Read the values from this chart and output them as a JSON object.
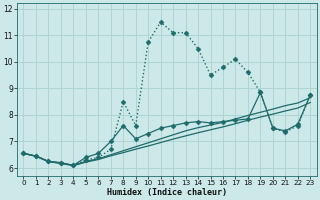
{
  "xlabel": "Humidex (Indice chaleur)",
  "bg_color": "#cce8e8",
  "grid_color": "#aed4d4",
  "line_color": "#1e6b6b",
  "xlim": [
    -0.5,
    23.5
  ],
  "ylim": [
    5.7,
    12.2
  ],
  "xticks": [
    0,
    1,
    2,
    3,
    4,
    5,
    6,
    7,
    8,
    9,
    10,
    11,
    12,
    13,
    14,
    15,
    16,
    17,
    18,
    19,
    20,
    21,
    22,
    23
  ],
  "yticks": [
    6,
    7,
    8,
    9,
    10,
    11,
    12
  ],
  "series": [
    {
      "x": [
        0,
        1,
        2,
        3,
        4,
        5,
        6,
        7,
        8,
        9,
        10,
        11,
        12,
        13,
        14,
        15,
        16,
        17,
        18,
        19,
        20,
        21,
        22,
        23
      ],
      "y": [
        6.55,
        6.45,
        6.25,
        6.2,
        6.1,
        6.3,
        6.4,
        6.7,
        8.5,
        7.6,
        10.75,
        11.5,
        11.1,
        11.1,
        10.5,
        9.5,
        9.8,
        10.1,
        9.6,
        8.85,
        7.5,
        7.35,
        7.6,
        8.75
      ],
      "linestyle": "dotted",
      "linewidth": 1.0,
      "marker": "D",
      "markersize": 2.5
    },
    {
      "x": [
        0,
        1,
        2,
        3,
        4,
        5,
        6,
        7,
        8,
        9,
        10,
        11,
        12,
        13,
        14,
        15,
        16,
        17,
        18,
        19,
        20,
        21,
        22,
        23
      ],
      "y": [
        6.55,
        6.45,
        6.25,
        6.2,
        6.1,
        6.4,
        6.55,
        7.0,
        7.6,
        7.1,
        7.3,
        7.5,
        7.6,
        7.7,
        7.75,
        7.7,
        7.75,
        7.8,
        7.85,
        8.85,
        7.5,
        7.4,
        7.65,
        8.75
      ],
      "linestyle": "solid",
      "linewidth": 0.9,
      "marker": "D",
      "markersize": 2.5
    },
    {
      "x": [
        0,
        1,
        2,
        3,
        4,
        5,
        6,
        7,
        8,
        9,
        10,
        11,
        12,
        13,
        14,
        15,
        16,
        17,
        18,
        19,
        20,
        21,
        22,
        23
      ],
      "y": [
        6.55,
        6.45,
        6.25,
        6.18,
        6.1,
        6.25,
        6.35,
        6.5,
        6.65,
        6.8,
        6.95,
        7.1,
        7.25,
        7.4,
        7.52,
        7.62,
        7.72,
        7.85,
        7.98,
        8.1,
        8.22,
        8.35,
        8.45,
        8.65
      ],
      "linestyle": "solid",
      "linewidth": 0.9,
      "marker": null,
      "markersize": 0
    },
    {
      "x": [
        0,
        1,
        2,
        3,
        4,
        5,
        6,
        7,
        8,
        9,
        10,
        11,
        12,
        13,
        14,
        15,
        16,
        17,
        18,
        19,
        20,
        21,
        22,
        23
      ],
      "y": [
        6.55,
        6.44,
        6.24,
        6.17,
        6.09,
        6.22,
        6.32,
        6.46,
        6.58,
        6.71,
        6.83,
        6.96,
        7.09,
        7.21,
        7.33,
        7.44,
        7.55,
        7.67,
        7.8,
        7.92,
        8.03,
        8.15,
        8.26,
        8.47
      ],
      "linestyle": "solid",
      "linewidth": 0.9,
      "marker": null,
      "markersize": 0
    }
  ]
}
